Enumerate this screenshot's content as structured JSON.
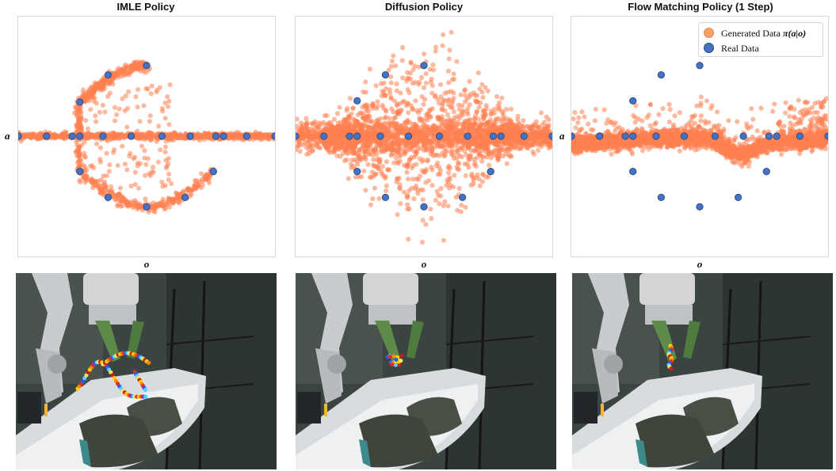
{
  "colors": {
    "generated": "#FF7F50",
    "real": "#4472C4",
    "real_edge": "#2E4A7A"
  },
  "panels": [
    {
      "id": "imle",
      "title": "IMLE Policy",
      "xlabel": "o",
      "ylabel": "a",
      "legend": false
    },
    {
      "id": "diffusion",
      "title": "Diffusion Policy",
      "xlabel": "o",
      "ylabel": "a",
      "legend": false
    },
    {
      "id": "flow",
      "title": "Flow Matching Policy (1 Step)",
      "xlabel": "o",
      "ylabel": "a",
      "legend": true
    }
  ],
  "legend": {
    "generated_prefix": "Generated Data ",
    "generated_math": "π(a|o)",
    "real": "Real Data"
  },
  "chart_data": [
    {
      "type": "scatter",
      "title": "IMLE Policy",
      "xlabel": "o",
      "ylabel": "a",
      "xlim": [
        0,
        1
      ],
      "ylim": [
        -1,
        1
      ],
      "grid": false,
      "series": [
        {
          "name": "Real Data",
          "points": [
            [
              0.0,
              0
            ],
            [
              0.11,
              0
            ],
            [
              0.21,
              0
            ],
            [
              0.24,
              0
            ],
            [
              0.33,
              0
            ],
            [
              0.44,
              0
            ],
            [
              0.56,
              0
            ],
            [
              0.67,
              0
            ],
            [
              0.77,
              0
            ],
            [
              0.8,
              0
            ],
            [
              0.89,
              0
            ],
            [
              1.0,
              0
            ],
            [
              0.24,
              0.29
            ],
            [
              0.35,
              0.52
            ],
            [
              0.5,
              0.6
            ],
            [
              0.24,
              -0.3
            ],
            [
              0.35,
              -0.52
            ],
            [
              0.5,
              -0.6
            ],
            [
              0.65,
              -0.52
            ],
            [
              0.76,
              -0.3
            ]
          ]
        }
      ],
      "generated": {
        "name": "Generated Data π(a|o)",
        "shape": "fork: band along a=0 plus upper and lower branches with scattered interior"
      }
    },
    {
      "type": "scatter",
      "title": "Diffusion Policy",
      "xlabel": "o",
      "ylabel": "a",
      "xlim": [
        0,
        1
      ],
      "ylim": [
        -1,
        1
      ],
      "grid": false,
      "series": [
        {
          "name": "Real Data",
          "points": [
            [
              0.0,
              0
            ],
            [
              0.11,
              0
            ],
            [
              0.21,
              0
            ],
            [
              0.24,
              0
            ],
            [
              0.33,
              0
            ],
            [
              0.44,
              0
            ],
            [
              0.56,
              0
            ],
            [
              0.67,
              0
            ],
            [
              0.77,
              0
            ],
            [
              0.8,
              0
            ],
            [
              0.89,
              0
            ],
            [
              1.0,
              0
            ],
            [
              0.24,
              0.3
            ],
            [
              0.35,
              0.52
            ],
            [
              0.5,
              0.6
            ],
            [
              0.24,
              -0.3
            ],
            [
              0.35,
              -0.52
            ],
            [
              0.5,
              -0.6
            ],
            [
              0.65,
              -0.52
            ],
            [
              0.76,
              -0.3
            ]
          ]
        }
      ],
      "generated": {
        "name": "Generated Data π(a|o)",
        "shape": "diamond-shaped diffuse cloud centered at o=0.5 over a=0 band"
      }
    },
    {
      "type": "scatter",
      "title": "Flow Matching Policy (1 Step)",
      "xlabel": "o",
      "ylabel": "a",
      "xlim": [
        0,
        1
      ],
      "ylim": [
        -1,
        1
      ],
      "grid": false,
      "legend": "top-right",
      "series": [
        {
          "name": "Real Data",
          "points": [
            [
              0.0,
              0
            ],
            [
              0.11,
              0
            ],
            [
              0.21,
              0
            ],
            [
              0.24,
              0
            ],
            [
              0.33,
              0
            ],
            [
              0.44,
              0
            ],
            [
              0.56,
              0
            ],
            [
              0.67,
              0
            ],
            [
              0.77,
              0
            ],
            [
              0.8,
              0
            ],
            [
              0.89,
              0
            ],
            [
              1.0,
              0
            ],
            [
              0.24,
              0.3
            ],
            [
              0.35,
              0.52
            ],
            [
              0.5,
              0.6
            ],
            [
              0.24,
              -0.3
            ],
            [
              0.35,
              -0.52
            ],
            [
              0.5,
              -0.6
            ],
            [
              0.65,
              -0.52
            ],
            [
              0.76,
              -0.3
            ]
          ]
        }
      ],
      "generated": {
        "name": "Generated Data π(a|o)",
        "shape": "averaged wavy band below a=0 dipping near o=0.65"
      }
    }
  ],
  "photos": [
    {
      "id": "imle-photo",
      "trajectory": "multi-colored spiral arcs"
    },
    {
      "id": "diffusion-photo",
      "trajectory": "small colored cluster"
    },
    {
      "id": "flow-photo",
      "trajectory": "short vertical colored line"
    }
  ]
}
